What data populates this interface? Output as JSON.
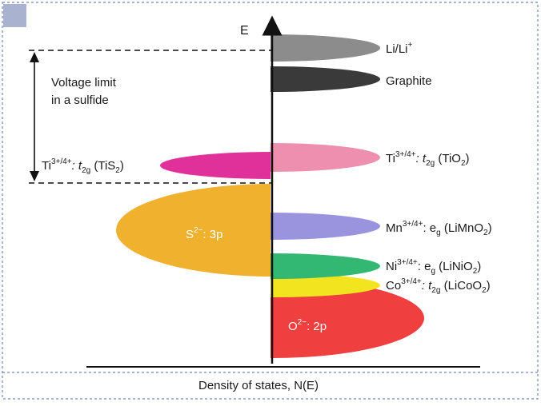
{
  "axis": {
    "y_label": "E",
    "x_label": "Density of states, N(E)"
  },
  "bracket_label": {
    "line1": "Voltage limit",
    "line2": "in a sulfide"
  },
  "bands": {
    "li": {
      "main": "Li/Li",
      "sup": "+"
    },
    "graphite": {
      "main": "Graphite"
    },
    "tio2": {
      "pre": "Ti",
      "sup": "3+/4+",
      "mid": ": t",
      "sub": "2g",
      "post": " (TiO",
      "sub2": "2",
      "end": ")"
    },
    "tis2": {
      "pre": "Ti",
      "sup": "3+/4+",
      "mid": ": t",
      "sub": "2g",
      "post": " (TiS",
      "sub2": "2",
      "end": ")"
    },
    "s3p": {
      "pre": "S",
      "sup": "2−",
      "post": ": 3p"
    },
    "limno2": {
      "pre": "Mn",
      "sup": "3+/4+",
      "mid": ": e",
      "sub": "g",
      "post": " (LiMnO",
      "sub2": "2",
      "end": ")"
    },
    "linio2": {
      "pre": "Ni",
      "sup": "3+/4+",
      "mid": ": e",
      "sub": "g",
      "post": " (LiNiO",
      "sub2": "2",
      "end": ")"
    },
    "licoo2": {
      "pre": "Co",
      "sup": "3+/4+",
      "mid": ": t",
      "sub": "2g",
      "post": " (LiCoO",
      "sub2": "2",
      "end": ")"
    },
    "o2p": {
      "pre": "O",
      "sup": "2−",
      "post": ": 2p"
    }
  },
  "colors": {
    "li": "#8c8c8c",
    "graphite": "#3a3a3a",
    "tio2": "#ef8fb0",
    "tis2": "#e0309a",
    "s3p": "#efb12e",
    "limno2": "#9a93dd",
    "linio2": "#33b873",
    "licoo2": "#f2e41e",
    "o2p": "#ef3f3f",
    "frame": "#6b86b8",
    "corner": "#a9b3cf"
  }
}
